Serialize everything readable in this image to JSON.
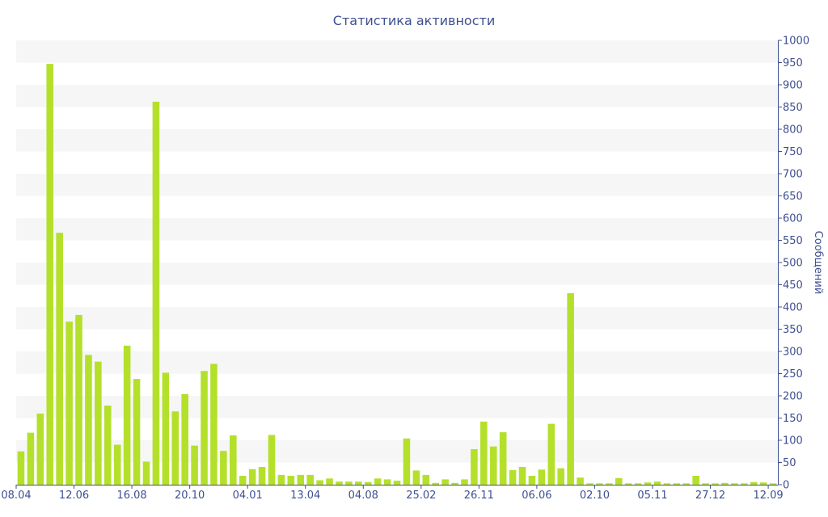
{
  "chart_data": {
    "type": "bar",
    "title": "Статистика активности",
    "ylabel": "Сообщений",
    "xlabel": "",
    "ylim": [
      0,
      1000
    ],
    "y_ticks": [
      0,
      50,
      100,
      150,
      200,
      250,
      300,
      350,
      400,
      450,
      500,
      550,
      600,
      650,
      700,
      750,
      800,
      850,
      900,
      950,
      1000
    ],
    "y_axis_side": "right",
    "x_tick_labels": [
      {
        "label": "08.04",
        "index": 0
      },
      {
        "label": "12.06",
        "index": 6
      },
      {
        "label": "16.08",
        "index": 12
      },
      {
        "label": "20.10",
        "index": 18
      },
      {
        "label": "04.01",
        "index": 24
      },
      {
        "label": "13.04",
        "index": 30
      },
      {
        "label": "04.08",
        "index": 36
      },
      {
        "label": "25.02",
        "index": 42
      },
      {
        "label": "26.11",
        "index": 48
      },
      {
        "label": "06.06",
        "index": 54
      },
      {
        "label": "02.10",
        "index": 60
      },
      {
        "label": "05.11",
        "index": 66
      },
      {
        "label": "27.12",
        "index": 72
      },
      {
        "label": "12.09",
        "index": 78
      }
    ],
    "grid": "alternating horizontal bands",
    "bar_color": "#b4e02c",
    "band_color": "#f6f6f6",
    "text_color": "#3e4f91",
    "values": [
      75,
      117,
      160,
      947,
      567,
      367,
      382,
      292,
      277,
      178,
      90,
      313,
      238,
      52,
      862,
      252,
      165,
      204,
      88,
      256,
      272,
      76,
      111,
      20,
      35,
      40,
      112,
      22,
      20,
      22,
      22,
      10,
      14,
      7,
      7,
      7,
      6,
      14,
      12,
      9,
      104,
      32,
      22,
      4,
      12,
      4,
      12,
      80,
      142,
      86,
      118,
      33,
      40,
      20,
      34,
      137,
      37,
      431,
      16,
      3,
      3,
      3,
      15,
      3,
      3,
      5,
      7,
      3,
      3,
      3,
      20,
      3,
      3,
      4,
      3,
      3,
      6,
      5,
      3
    ]
  }
}
